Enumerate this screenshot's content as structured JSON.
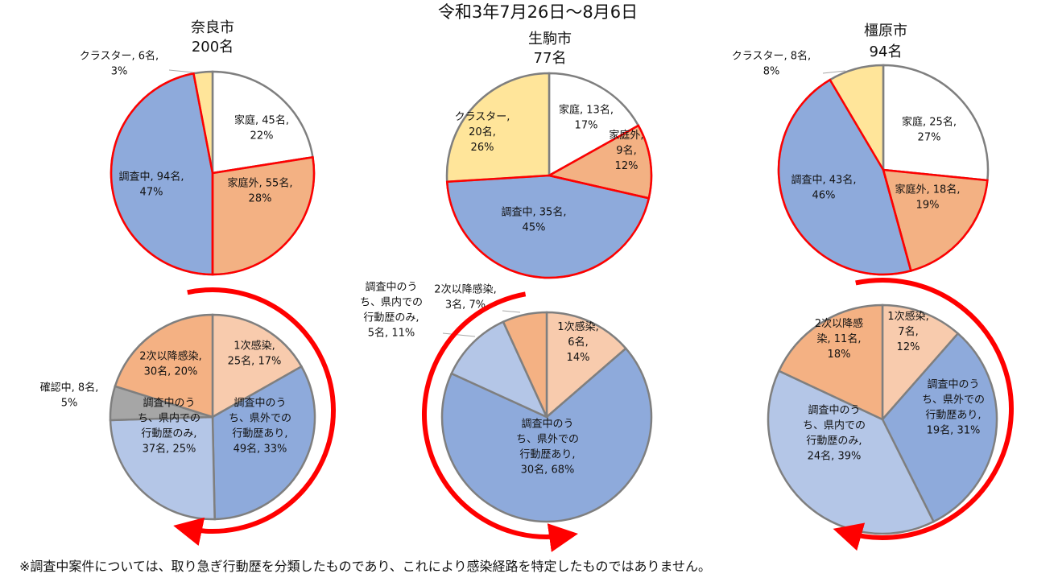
{
  "title": "令和3年7月26日〜8月6日",
  "footnote": "※調査中案件については、取り急ぎ行動歴を分類したものであり、これにより感染経路を特定したものではありません。",
  "colors": {
    "household": "#ffffff",
    "outside_household": "#f3b183",
    "investigating": "#8eaadb",
    "cluster": "#ffe59a",
    "first_infection": "#f8cbad",
    "secondary_infection": "#f4b183",
    "outside_prefecture": "#8eaadb",
    "inside_prefecture": "#b4c6e7",
    "confirming": "#a6a6a6",
    "highlight": "#ff0000",
    "slice_border": "#7f7f7f"
  },
  "chart_data": [
    {
      "type": "pie",
      "title": "奈良市",
      "subtitle": "200名",
      "slices": [
        {
          "label": "家庭, 45名,\n22%",
          "value": 45,
          "color": "#ffffff"
        },
        {
          "label": "家庭外, 55名,\n28%",
          "value": 55,
          "color": "#f3b183",
          "highlight": true
        },
        {
          "label": "調査中, 94名,\n47%",
          "value": 94,
          "color": "#8eaadb",
          "highlight": true
        },
        {
          "label": "クラスター, 6名,\n3%",
          "value": 6,
          "color": "#ffe59a"
        }
      ]
    },
    {
      "type": "pie",
      "title": "生駒市",
      "subtitle": "77名",
      "slices": [
        {
          "label": "家庭, 13名,\n17%",
          "value": 13,
          "color": "#ffffff"
        },
        {
          "label": "家庭外,\n9名,\n12%",
          "value": 9,
          "color": "#f3b183",
          "highlight": true
        },
        {
          "label": "調査中, 35名,\n45%",
          "value": 35,
          "color": "#8eaadb",
          "highlight": true
        },
        {
          "label": "クラスター,\n20名,\n26%",
          "value": 20,
          "color": "#ffe59a"
        }
      ]
    },
    {
      "type": "pie",
      "title": "橿原市",
      "subtitle": "94名",
      "slices": [
        {
          "label": "家庭, 25名,\n27%",
          "value": 25,
          "color": "#ffffff"
        },
        {
          "label": "家庭外, 18名,\n19%",
          "value": 18,
          "color": "#f3b183",
          "highlight": true
        },
        {
          "label": "調査中, 43名,\n46%",
          "value": 43,
          "color": "#8eaadb",
          "highlight": true
        },
        {
          "label": "クラスター, 8名,\n8%",
          "value": 8,
          "color": "#ffe59a"
        }
      ]
    },
    {
      "type": "pie",
      "title": "",
      "slices": [
        {
          "label": "1次感染,\n25名, 17%",
          "value": 25,
          "color": "#f8cbad"
        },
        {
          "label": "調査中のう\nち、県外での\n行動歴あり,\n49名, 33%",
          "value": 49,
          "color": "#8eaadb"
        },
        {
          "label": "調査中のう\nち、県内での\n行動歴のみ,\n37名, 25%",
          "value": 37,
          "color": "#b4c6e7"
        },
        {
          "label": "確認中, 8名,\n5%",
          "value": 8,
          "color": "#a6a6a6"
        },
        {
          "label": "2次以降感染,\n30名, 20%",
          "value": 30,
          "color": "#f4b183"
        }
      ]
    },
    {
      "type": "pie",
      "title": "",
      "slices": [
        {
          "label": "1次感染,\n6名,\n14%",
          "value": 6,
          "color": "#f8cbad"
        },
        {
          "label": "調査中のう\nち、県外での\n行動歴あり,\n30名, 68%",
          "value": 30,
          "color": "#8eaadb"
        },
        {
          "label": "調査中のう\nち、県内での\n行動歴のみ,\n5名, 11%",
          "value": 5,
          "color": "#b4c6e7"
        },
        {
          "label": "2次以降感染,\n3名, 7%",
          "value": 3,
          "color": "#f4b183"
        }
      ]
    },
    {
      "type": "pie",
      "title": "",
      "slices": [
        {
          "label": "1次感染,\n7名,\n12%",
          "value": 7,
          "color": "#f8cbad"
        },
        {
          "label": "調査中のう\nち、県外での\n行動歴あり,\n19名, 31%",
          "value": 19,
          "color": "#8eaadb"
        },
        {
          "label": "調査中のう\nち、県内での\n行動歴のみ,\n24名, 39%",
          "value": 24,
          "color": "#b4c6e7"
        },
        {
          "label": "2次以降感\n染, 11名,\n18%",
          "value": 11,
          "color": "#f4b183"
        }
      ]
    }
  ]
}
